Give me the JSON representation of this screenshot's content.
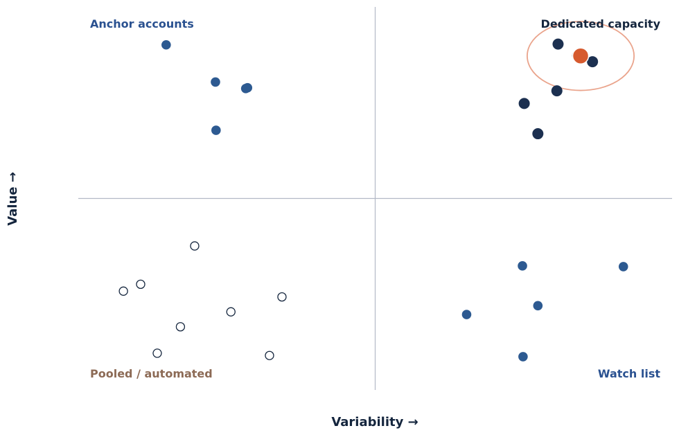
{
  "chart_data": {
    "type": "scatter",
    "xlabel": "Variability  →",
    "ylabel": "Value  →",
    "xlim": [
      0,
      100
    ],
    "ylim": [
      0,
      100
    ],
    "grid": false,
    "quadrant_lines": {
      "x": 50,
      "y": 50
    },
    "quadrants": [
      {
        "key": "top-left",
        "label": "Anchor accounts",
        "color": "#2a5190"
      },
      {
        "key": "top-right",
        "label": "Dedicated capacity",
        "color": "#14253d"
      },
      {
        "key": "bottom-left",
        "label": "Pooled / automated",
        "color": "#8c6a55"
      },
      {
        "key": "bottom-right",
        "label": "Watch list",
        "color": "#2a5190"
      }
    ],
    "series": [
      {
        "quadrant": "top-left",
        "style": "filled",
        "color": "#2d5a91",
        "points": [
          {
            "x": 14.8,
            "y": 90.1
          },
          {
            "x": 23.1,
            "y": 80.4
          },
          {
            "x": 28.5,
            "y": 78.9
          },
          {
            "x": 28.2,
            "y": 78.7
          },
          {
            "x": 23.2,
            "y": 67.8
          }
        ]
      },
      {
        "quadrant": "top-right",
        "style": "filled",
        "color": "#1c3050",
        "points": [
          {
            "x": 80.8,
            "y": 90.3
          },
          {
            "x": 86.6,
            "y": 85.7
          },
          {
            "x": 80.6,
            "y": 78.1
          },
          {
            "x": 75.1,
            "y": 74.8
          },
          {
            "x": 77.4,
            "y": 66.9
          },
          {
            "x": 84.1,
            "y": 87.3
          }
        ]
      },
      {
        "quadrant": "bottom-left",
        "style": "hollow",
        "color": "#14253d",
        "points": [
          {
            "x": 19.6,
            "y": 37.6
          },
          {
            "x": 7.6,
            "y": 25.8
          },
          {
            "x": 10.5,
            "y": 27.6
          },
          {
            "x": 34.3,
            "y": 24.3
          },
          {
            "x": 25.7,
            "y": 20.4
          },
          {
            "x": 17.2,
            "y": 16.5
          },
          {
            "x": 13.3,
            "y": 9.6
          },
          {
            "x": 32.2,
            "y": 9.0
          }
        ]
      },
      {
        "quadrant": "bottom-right",
        "style": "filled",
        "color": "#2d5a91",
        "points": [
          {
            "x": 74.8,
            "y": 32.4
          },
          {
            "x": 91.8,
            "y": 32.2
          },
          {
            "x": 77.4,
            "y": 22.0
          },
          {
            "x": 65.4,
            "y": 19.7
          },
          {
            "x": 74.9,
            "y": 8.7
          }
        ]
      }
    ],
    "highlight": {
      "x": 84.6,
      "y": 87.2,
      "color": "#d65a2e",
      "ring_color": "#eaa48c",
      "ring_rx": 9.0,
      "ring_ry": 9.0
    }
  }
}
